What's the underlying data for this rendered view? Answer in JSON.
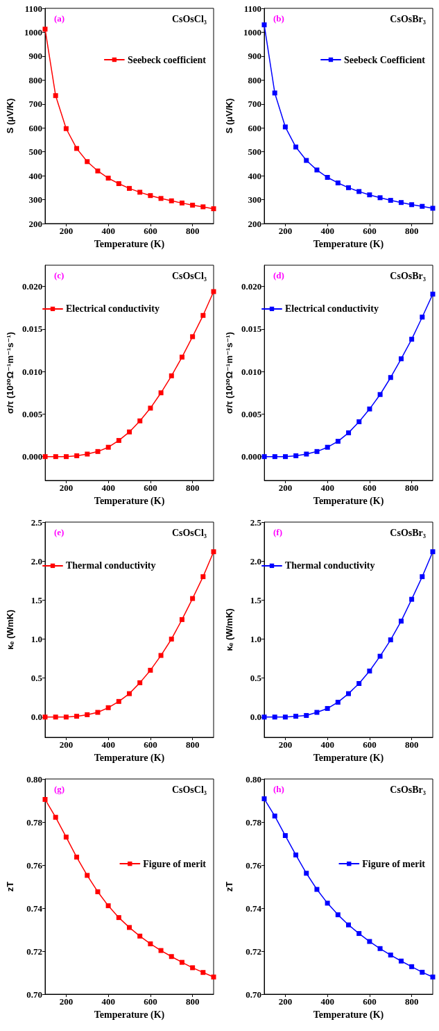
{
  "chart_data": [
    {
      "type": "line",
      "xlabel": "Temperature (K)",
      "ylabel": "S (μV/K)",
      "annotations": [
        "(a)",
        "CsOsCl₃"
      ],
      "x": [
        100,
        150,
        200,
        250,
        300,
        350,
        400,
        450,
        500,
        550,
        600,
        650,
        700,
        750,
        800,
        850,
        900
      ],
      "xlim": [
        100,
        900
      ],
      "xticks": [
        200,
        400,
        600,
        800
      ],
      "ylim": [
        200,
        1100
      ],
      "yticks": [
        200,
        300,
        400,
        500,
        600,
        700,
        800,
        900,
        1000,
        1100
      ],
      "marker": "square",
      "line_style": "solid",
      "grid": false,
      "legend": "top right",
      "series": [
        {
          "name": "Seebeck coefficient",
          "color": "#ff0000",
          "values": [
            1013,
            735,
            597,
            514,
            459,
            420,
            390,
            367,
            347,
            331,
            317,
            305,
            295,
            286,
            277,
            270,
            262
          ]
        }
      ]
    },
    {
      "type": "line",
      "xlabel": "Temperature (K)",
      "ylabel": "S (μV/K)",
      "annotations": [
        "(b)",
        "CsOsBr₃"
      ],
      "x": [
        100,
        150,
        200,
        250,
        300,
        350,
        400,
        450,
        500,
        550,
        600,
        650,
        700,
        750,
        800,
        850,
        900
      ],
      "xlim": [
        100,
        900
      ],
      "xticks": [
        200,
        400,
        600,
        800
      ],
      "ylim": [
        200,
        1100
      ],
      "yticks": [
        200,
        300,
        400,
        500,
        600,
        700,
        800,
        900,
        1000,
        1100
      ],
      "marker": "square",
      "line_style": "solid",
      "grid": false,
      "legend": "top right",
      "series": [
        {
          "name": "Seebeck Coefficient",
          "color": "#0000ff",
          "values": [
            1031,
            746,
            604,
            520,
            464,
            424,
            393,
            370,
            350,
            334,
            320,
            308,
            297,
            288,
            279,
            272,
            264
          ]
        }
      ]
    },
    {
      "type": "line",
      "xlabel": "Temperature (K)",
      "ylabel": "σ/τ (10²⁰Ω⁻¹m⁻¹s⁻¹)",
      "annotations": [
        "(c)",
        "CsOsCl₃"
      ],
      "x": [
        100,
        150,
        200,
        250,
        300,
        350,
        400,
        450,
        500,
        550,
        600,
        650,
        700,
        750,
        800,
        850,
        900
      ],
      "xlim": [
        100,
        900
      ],
      "xticks": [
        200,
        400,
        600,
        800
      ],
      "ylim": [
        -0.0028,
        0.0225
      ],
      "yticks": [
        {
          "value": 0,
          "label": "0.000"
        },
        0.005,
        {
          "value": 0.01,
          "label": "0.010"
        },
        0.015,
        {
          "value": 0.02,
          "label": "0.020"
        }
      ],
      "marker": "square",
      "line_style": "solid",
      "grid": false,
      "legend": "top left",
      "series": [
        {
          "name": "Electrical conductivity",
          "color": "#ff0000",
          "values": [
            0,
            0,
            0,
            0.0001,
            0.0003,
            0.0006,
            0.0011,
            0.0019,
            0.0029,
            0.0042,
            0.0057,
            0.0075,
            0.0095,
            0.0117,
            0.0141,
            0.0166,
            0.0194
          ]
        }
      ]
    },
    {
      "type": "line",
      "xlabel": "Temperature (K)",
      "ylabel": "σ/τ (10²⁰Ω⁻¹m⁻¹s⁻¹)",
      "annotations": [
        "(d)",
        "CsOsBr₃"
      ],
      "x": [
        100,
        150,
        200,
        250,
        300,
        350,
        400,
        450,
        500,
        550,
        600,
        650,
        700,
        750,
        800,
        850,
        900
      ],
      "xlim": [
        100,
        900
      ],
      "xticks": [
        200,
        400,
        600,
        800
      ],
      "ylim": [
        -0.0028,
        0.0225
      ],
      "yticks": [
        {
          "value": 0,
          "label": "0.000"
        },
        0.005,
        {
          "value": 0.01,
          "label": "0.010"
        },
        0.015,
        {
          "value": 0.02,
          "label": "0.020"
        }
      ],
      "marker": "square",
      "line_style": "solid",
      "grid": false,
      "legend": "top left",
      "series": [
        {
          "name": "Electrical conductivity",
          "color": "#0000ff",
          "values": [
            0,
            0,
            0,
            0.0001,
            0.0003,
            0.0006,
            0.0011,
            0.0018,
            0.0028,
            0.0041,
            0.0056,
            0.0073,
            0.0093,
            0.0115,
            0.0138,
            0.0164,
            0.0191
          ]
        }
      ]
    },
    {
      "type": "line",
      "xlabel": "Temperature (K)",
      "ylabel": "κₑ (WmK)",
      "annotations": [
        "(e)",
        "CsOsCl₃"
      ],
      "x": [
        100,
        150,
        200,
        250,
        300,
        350,
        400,
        450,
        500,
        550,
        600,
        650,
        700,
        750,
        800,
        850,
        900
      ],
      "xlim": [
        100,
        900
      ],
      "xticks": [
        200,
        400,
        600,
        800
      ],
      "ylim": [
        -0.26,
        2.5
      ],
      "yticks": [
        {
          "value": 0,
          "label": "0.0"
        },
        0.5,
        {
          "value": 1,
          "label": "1.0"
        },
        1.5,
        {
          "value": 2,
          "label": "2.0"
        },
        2.5
      ],
      "marker": "square",
      "line_style": "solid",
      "grid": false,
      "legend": "top left",
      "series": [
        {
          "name": "Thermal conductivity",
          "color": "#ff0000",
          "values": [
            0,
            0,
            0,
            0.01,
            0.03,
            0.06,
            0.12,
            0.2,
            0.3,
            0.44,
            0.6,
            0.79,
            1.0,
            1.25,
            1.52,
            1.8,
            2.12
          ]
        }
      ]
    },
    {
      "type": "line",
      "xlabel": "Temperature (K)",
      "ylabel": "κₑ (W/mK)",
      "annotations": [
        "(f)",
        "CsOsBr₃"
      ],
      "x": [
        100,
        150,
        200,
        250,
        300,
        350,
        400,
        450,
        500,
        550,
        600,
        650,
        700,
        750,
        800,
        850,
        900
      ],
      "xlim": [
        100,
        900
      ],
      "xticks": [
        200,
        400,
        600,
        800
      ],
      "ylim": [
        -0.26,
        2.5
      ],
      "yticks": [
        {
          "value": 0,
          "label": "0.0"
        },
        0.5,
        {
          "value": 1,
          "label": "1.0"
        },
        1.5,
        {
          "value": 2,
          "label": "2.0"
        },
        2.5
      ],
      "marker": "square",
      "line_style": "solid",
      "grid": false,
      "legend": "top left",
      "series": [
        {
          "name": "Thermal conductivity",
          "color": "#0000ff",
          "values": [
            0,
            0,
            0,
            0.01,
            0.02,
            0.06,
            0.11,
            0.19,
            0.3,
            0.43,
            0.59,
            0.78,
            0.99,
            1.23,
            1.51,
            1.8,
            2.12
          ]
        }
      ]
    },
    {
      "type": "line",
      "xlabel": "Temperature (K)",
      "ylabel": "zT",
      "annotations": [
        "(g)",
        "CsOsCl₃"
      ],
      "x": [
        100,
        150,
        200,
        250,
        300,
        350,
        400,
        450,
        500,
        550,
        600,
        650,
        700,
        750,
        800,
        850,
        900
      ],
      "xlim": [
        100,
        900
      ],
      "xticks": [
        200,
        400,
        600,
        800
      ],
      "ylim": [
        0.7,
        0.8
      ],
      "yticks": [
        {
          "value": 0.7,
          "label": "0.70"
        },
        0.72,
        0.74,
        0.76,
        0.78,
        {
          "value": 0.8,
          "label": "0.80"
        }
      ],
      "marker": "square",
      "line_style": "solid",
      "grid": false,
      "legend": "right",
      "series": [
        {
          "name": "Figure of merit",
          "color": "#ff0000",
          "values": [
            0.7905,
            0.7822,
            0.773,
            0.7637,
            0.7552,
            0.7476,
            0.7411,
            0.7356,
            0.731,
            0.727,
            0.7234,
            0.7203,
            0.7175,
            0.7148,
            0.7123,
            0.7101,
            0.708
          ]
        }
      ]
    },
    {
      "type": "line",
      "xlabel": "Temperature (K)",
      "ylabel": "zT",
      "annotations": [
        "(h)",
        "CsOsBr₃"
      ],
      "x": [
        100,
        150,
        200,
        250,
        300,
        350,
        400,
        450,
        500,
        550,
        600,
        650,
        700,
        750,
        800,
        850,
        900
      ],
      "xlim": [
        100,
        900
      ],
      "xticks": [
        200,
        400,
        600,
        800
      ],
      "ylim": [
        0.7,
        0.8
      ],
      "yticks": [
        {
          "value": 0.7,
          "label": "0.70"
        },
        0.72,
        0.74,
        0.76,
        0.78,
        {
          "value": 0.8,
          "label": "0.80"
        }
      ],
      "marker": "square",
      "line_style": "solid",
      "grid": false,
      "legend": "right",
      "series": [
        {
          "name": "Figure of merit",
          "color": "#0000ff",
          "values": [
            0.7908,
            0.7828,
            0.7737,
            0.7647,
            0.7562,
            0.7487,
            0.7423,
            0.7369,
            0.7322,
            0.7282,
            0.7245,
            0.7212,
            0.7182,
            0.7154,
            0.7128,
            0.7102,
            0.708
          ]
        }
      ]
    }
  ]
}
